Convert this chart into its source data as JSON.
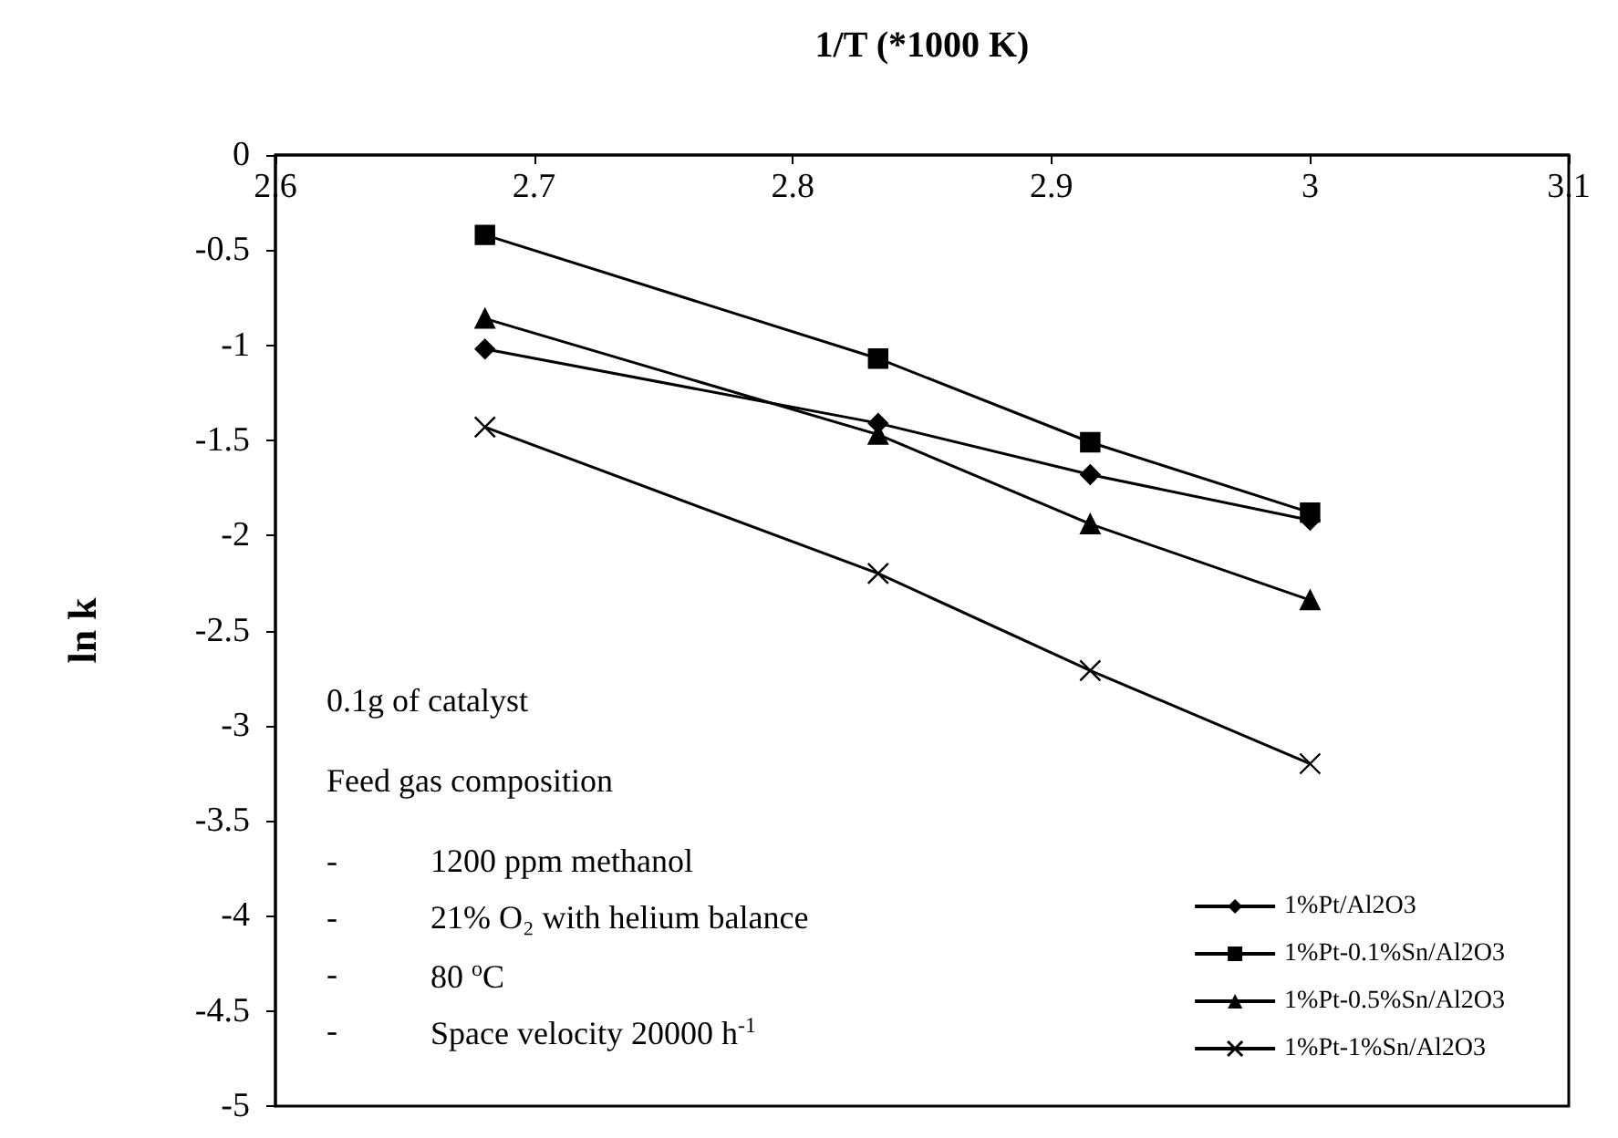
{
  "chart_data": {
    "type": "line",
    "xlabel": "1/T (*1000 K)",
    "ylabel": "ln k",
    "x": [
      2.681,
      2.833,
      2.915,
      3.0
    ],
    "xlim": [
      2.6,
      3.1
    ],
    "xticks": [
      2.6,
      2.7,
      2.8,
      2.9,
      3,
      3.1
    ],
    "ylim": [
      -5,
      0
    ],
    "yticks": [
      0,
      -0.5,
      -1,
      -1.5,
      -2,
      -2.5,
      -3,
      -3.5,
      -4,
      -4.5,
      -5
    ],
    "series": [
      {
        "name": "1%Pt/Al2O3",
        "color": "#000000",
        "marker": "diamond",
        "values": [
          -1.02,
          -1.41,
          -1.68,
          -1.92
        ]
      },
      {
        "name": "1%Pt-0.1%Sn/Al2O3",
        "color": "#000000",
        "marker": "square",
        "values": [
          -0.42,
          -1.07,
          -1.51,
          -1.88
        ]
      },
      {
        "name": "1%Pt-0.5%Sn/Al2O3",
        "color": "#000000",
        "marker": "triangle",
        "values": [
          -0.86,
          -1.47,
          -1.94,
          -2.34
        ]
      },
      {
        "name": "1%Pt-1%Sn/Al2O3",
        "color": "#000000",
        "marker": "cross",
        "values": [
          -1.43,
          -2.2,
          -2.71,
          -3.2
        ]
      }
    ],
    "annotations": [
      "0.1g of catalyst",
      "Feed gas composition",
      "- 1200 ppm methanol",
      "- 21% O₂ with helium balance",
      "- 80 $^{o}$C",
      "- Space velocity 20000 h$^{-1}$"
    ],
    "legend": "bottom right",
    "grid": false,
    "line_style": "solid"
  }
}
